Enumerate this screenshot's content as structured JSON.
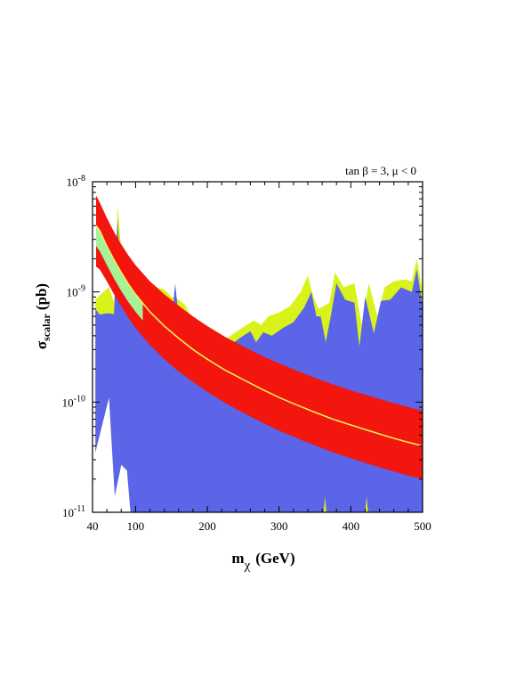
{
  "chart_data": {
    "type": "area",
    "annotation": "tan β = 3, μ < 0",
    "xlabel": {
      "main": "m",
      "sub": "χ",
      "unit": "(GeV)"
    },
    "ylabel": {
      "main": "σ",
      "sub": "scalar",
      "unit": "(pb)"
    },
    "xlim": [
      40,
      500
    ],
    "ylim": [
      1e-11,
      1e-08
    ],
    "yscale": "log",
    "grid": false,
    "x_ticks": [
      {
        "value": 40,
        "label": "40"
      },
      {
        "value": 100,
        "label": "100"
      },
      {
        "value": 200,
        "label": "200"
      },
      {
        "value": 300,
        "label": "300"
      },
      {
        "value": 400,
        "label": "400"
      },
      {
        "value": 500,
        "label": "500"
      }
    ],
    "y_ticks": [
      {
        "value": 1e-08,
        "base": "10",
        "exp": "-8"
      },
      {
        "value": 1e-09,
        "base": "10",
        "exp": "-9"
      },
      {
        "value": 1e-10,
        "base": "10",
        "exp": "-10"
      },
      {
        "value": 1e-11,
        "base": "10",
        "exp": "-11"
      }
    ],
    "colors": {
      "yellow_region": "#d8f21a",
      "blue_region": "#5c64e8",
      "red_band": "#f2160e",
      "green_band": "#a6f29a",
      "center_line": "#f0ee58"
    },
    "yellow_region": [
      [
        44,
        8.5e-10
      ],
      [
        55,
        1e-09
      ],
      [
        63,
        1.1e-09
      ],
      [
        70,
        8e-10
      ],
      [
        75,
        6.2e-09
      ],
      [
        80,
        2.3e-09
      ],
      [
        85,
        2e-09
      ],
      [
        90,
        1.8e-09
      ],
      [
        100,
        1.5e-09
      ],
      [
        110,
        1.3e-09
      ],
      [
        120,
        1.25e-09
      ],
      [
        130,
        1.1e-09
      ],
      [
        140,
        1.05e-09
      ],
      [
        150,
        9e-10
      ],
      [
        160,
        8.5e-10
      ],
      [
        170,
        7.5e-10
      ],
      [
        185,
        4.5e-10
      ],
      [
        200,
        3e-10
      ],
      [
        210,
        3.1e-10
      ],
      [
        230,
        3.9e-10
      ],
      [
        250,
        4.8e-10
      ],
      [
        265,
        5.5e-10
      ],
      [
        275,
        5e-10
      ],
      [
        285,
        6e-10
      ],
      [
        300,
        6.5e-10
      ],
      [
        315,
        7.4e-10
      ],
      [
        330,
        1e-09
      ],
      [
        340,
        1.4e-09
      ],
      [
        348,
        9e-10
      ],
      [
        355,
        7e-10
      ],
      [
        370,
        8e-10
      ],
      [
        378,
        1.5e-09
      ],
      [
        390,
        1.1e-09
      ],
      [
        405,
        1.2e-09
      ],
      [
        415,
        5e-10
      ],
      [
        425,
        1.2e-09
      ],
      [
        437,
        6e-10
      ],
      [
        447,
        1.1e-09
      ],
      [
        460,
        1.25e-09
      ],
      [
        475,
        1.3e-09
      ],
      [
        485,
        1.25e-09
      ],
      [
        492,
        2e-09
      ],
      [
        500,
        1e-09
      ]
    ],
    "blue_region": [
      [
        44,
        7e-10
      ],
      [
        50,
        6.2e-10
      ],
      [
        60,
        6.4e-10
      ],
      [
        70,
        6.3e-10
      ],
      [
        75,
        4.6e-09
      ],
      [
        80,
        1e-09
      ],
      [
        90,
        1.2e-09
      ],
      [
        100,
        9.2e-10
      ],
      [
        110,
        7.4e-10
      ],
      [
        125,
        6.2e-10
      ],
      [
        140,
        5.5e-10
      ],
      [
        150,
        4.8e-10
      ],
      [
        155,
        1.2e-09
      ],
      [
        160,
        6e-10
      ],
      [
        175,
        5.4e-10
      ],
      [
        195,
        3.5e-10
      ],
      [
        205,
        2.3e-10
      ],
      [
        215,
        2.4e-10
      ],
      [
        230,
        3.2e-10
      ],
      [
        245,
        3.8e-10
      ],
      [
        260,
        4.4e-10
      ],
      [
        268,
        3.5e-10
      ],
      [
        278,
        4.3e-10
      ],
      [
        290,
        4e-10
      ],
      [
        305,
        4.7e-10
      ],
      [
        320,
        5.3e-10
      ],
      [
        335,
        7.2e-10
      ],
      [
        345,
        1e-09
      ],
      [
        352,
        6e-10
      ],
      [
        358,
        6e-10
      ],
      [
        365,
        3.5e-10
      ],
      [
        372,
        6e-10
      ],
      [
        380,
        1.2e-09
      ],
      [
        392,
        8.5e-10
      ],
      [
        405,
        8e-10
      ],
      [
        412,
        3.2e-10
      ],
      [
        420,
        9e-10
      ],
      [
        432,
        4.2e-10
      ],
      [
        442,
        8.3e-10
      ],
      [
        455,
        8.5e-10
      ],
      [
        470,
        1.1e-09
      ],
      [
        485,
        1e-09
      ],
      [
        492,
        1.6e-09
      ],
      [
        500,
        7.5e-10
      ]
    ],
    "blue_lower_edge": [
      [
        44,
        3.5e-11
      ],
      [
        63,
        1.1e-10
      ],
      [
        71,
        1.4e-11
      ],
      [
        80,
        2.7e-11
      ],
      [
        88,
        2.4e-11
      ],
      [
        93,
        9.9e-12
      ],
      [
        105,
        9.9e-12
      ],
      [
        362,
        9.9e-12
      ],
      [
        364,
        1.4e-11
      ],
      [
        366,
        9.9e-12
      ],
      [
        420,
        9.9e-12
      ],
      [
        422,
        1.4e-11
      ],
      [
        424,
        9.9e-12
      ],
      [
        500,
        9.9e-12
      ]
    ],
    "yellow_lower_edge": [
      [
        44,
        3.5e-11
      ],
      [
        63,
        1.1e-10
      ],
      [
        71,
        1.4e-11
      ],
      [
        80,
        2.7e-11
      ],
      [
        88,
        2.4e-11
      ],
      [
        94,
        9.9e-12
      ],
      [
        500,
        9.9e-12
      ]
    ],
    "red_band": {
      "x": [
        45,
        50,
        60,
        70,
        80,
        90,
        100,
        120,
        140,
        160,
        180,
        200,
        225,
        250,
        275,
        300,
        325,
        350,
        375,
        400,
        425,
        450,
        475,
        500
      ],
      "upper": [
        7.5e-09,
        6.5e-09,
        4.7e-09,
        3.5e-09,
        2.7e-09,
        2.15e-09,
        1.75e-09,
        1.25e-09,
        9.5e-10,
        7.5e-10,
        6e-10,
        4.9e-10,
        3.9e-10,
        3.2e-10,
        2.65e-10,
        2.25e-10,
        1.92e-10,
        1.66e-10,
        1.45e-10,
        1.28e-10,
        1.14e-10,
        1.02e-10,
        9.2e-11,
        8.3e-11
      ],
      "lower": [
        1.7e-09,
        1.6e-09,
        1.25e-09,
        9.5e-10,
        7.4e-10,
        5.8e-10,
        4.7e-10,
        3.3e-10,
        2.45e-10,
        1.9e-10,
        1.52e-10,
        1.24e-10,
        9.8e-11,
        8e-11,
        6.6e-11,
        5.5e-11,
        4.7e-11,
        4.05e-11,
        3.5e-11,
        3.1e-11,
        2.75e-11,
        2.45e-11,
        2.2e-11,
        2e-11
      ],
      "center": [
        4e-09,
        3.6e-09,
        2.6e-09,
        1.95e-09,
        1.5e-09,
        1.18e-09,
        9.5e-10,
        6.6e-10,
        4.9e-10,
        3.8e-10,
        3e-10,
        2.45e-10,
        1.95e-10,
        1.6e-10,
        1.32e-10,
        1.1e-10,
        9.4e-11,
        8.1e-11,
        7e-11,
        6.2e-11,
        5.5e-11,
        4.9e-11,
        4.4e-11,
        4e-11
      ]
    },
    "green_band": {
      "x": [
        45,
        50,
        60,
        70,
        80,
        90,
        100,
        110
      ],
      "upper": [
        4e-09,
        3.6e-09,
        2.6e-09,
        1.95e-09,
        1.5e-09,
        1.18e-09,
        9.5e-10,
        7.9e-10
      ],
      "lower": [
        2.6e-09,
        2.35e-09,
        1.75e-09,
        1.32e-09,
        1.02e-09,
        8.1e-10,
        6.6e-10,
        5.5e-10
      ]
    }
  }
}
